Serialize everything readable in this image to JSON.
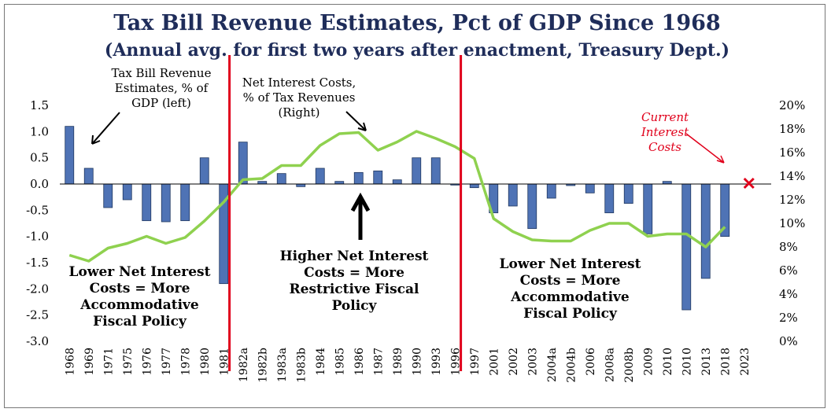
{
  "chart_data": {
    "type": "bar",
    "title": "Tax Bill Revenue Estimates, Pct of GDP Since 1968",
    "subtitle": "(Annual avg. for first two years after enactment, Treasury Dept.)",
    "categories": [
      "1968",
      "1969",
      "1971",
      "1975",
      "1976",
      "1977",
      "1978",
      "1980",
      "1981",
      "1982a",
      "1982b",
      "1983a",
      "1983b",
      "1984",
      "1985",
      "1986",
      "1987",
      "1989",
      "1990",
      "1993",
      "1996",
      "1997",
      "2001",
      "2002",
      "2003",
      "2004a",
      "2004b",
      "2006",
      "2008a",
      "2008b",
      "2009",
      "2010",
      "2010",
      "2013",
      "2018",
      "2023"
    ],
    "series": [
      {
        "name": "Tax Bill Revenue Estimates, % of GDP (left)",
        "axis": "left",
        "type": "bar",
        "values": [
          1.1,
          0.3,
          -0.45,
          -0.3,
          -0.7,
          -0.72,
          -0.7,
          0.5,
          -1.9,
          0.8,
          0.05,
          0.2,
          -0.05,
          0.3,
          0.05,
          0.22,
          0.25,
          0.08,
          0.5,
          0.5,
          -0.02,
          -0.07,
          -0.55,
          -0.42,
          -0.85,
          -0.27,
          -0.03,
          -0.17,
          -0.55,
          -0.37,
          -0.95,
          0.05,
          -2.4,
          -1.8,
          -1.0,
          null
        ]
      },
      {
        "name": "Net Interest Costs, % of Tax Revenues (Right)",
        "axis": "right",
        "type": "line",
        "values": [
          7.3,
          6.8,
          7.9,
          8.3,
          8.9,
          8.3,
          8.8,
          10.2,
          11.8,
          13.7,
          13.8,
          14.9,
          14.9,
          16.6,
          17.6,
          17.7,
          16.2,
          16.9,
          17.8,
          17.2,
          16.5,
          15.5,
          10.4,
          9.3,
          8.6,
          8.5,
          8.5,
          9.4,
          10.0,
          10.0,
          8.9,
          9.1,
          9.1,
          8.0,
          9.7,
          null
        ]
      }
    ],
    "current_interest_costs": {
      "category": "2023",
      "value": 13.4
    },
    "ylim_left": [
      -3.0,
      1.5
    ],
    "ylim_right": [
      0,
      20
    ],
    "left_ticks": [
      "-3.0",
      "-2.5",
      "-2.0",
      "-1.5",
      "-1.0",
      "-0.5",
      "0.0",
      "0.5",
      "1.0",
      "1.5"
    ],
    "right_ticks": [
      "0%",
      "2%",
      "4%",
      "6%",
      "8%",
      "10%",
      "12%",
      "14%",
      "16%",
      "18%",
      "20%"
    ],
    "divider_after": [
      "1981",
      "1996"
    ],
    "colors": {
      "bar": "#4f73b5",
      "bar_edge": "#1f3760",
      "line": "#8fd14f",
      "divider": "#e0001b",
      "marker": "#e0001b",
      "title": "#1f2d5a"
    }
  },
  "annotations": {
    "bars_label": "Tax Bill Revenue Estimates, % of GDP (left)",
    "line_label": "Net Interest Costs, % of Tax Revenues (Right)",
    "current": "Current Interest Costs",
    "left_region": "Lower Net Interest Costs = More Accommodative Fiscal Policy",
    "mid_region": "Higher Net Interest Costs = More Restrictive Fiscal Policy",
    "right_region": "Lower Net Interest Costs = More Accommodative Fiscal Policy"
  }
}
